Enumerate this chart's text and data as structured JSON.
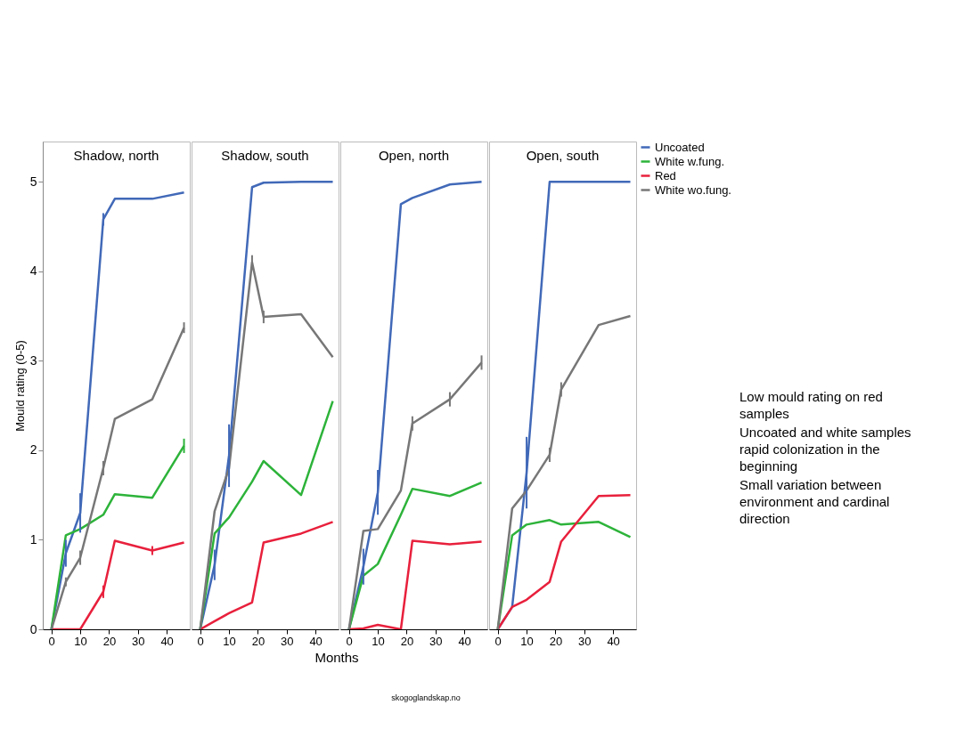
{
  "chart_data": [
    {
      "type": "line",
      "title": "Shadow, north",
      "ylabel": "Mould rating (0-5)",
      "x": [
        0,
        5,
        10,
        18,
        22,
        35,
        46
      ],
      "xlim": [
        -3,
        48
      ],
      "xticks": [
        0,
        10,
        20,
        30,
        40
      ],
      "ylim": [
        0,
        5.45
      ],
      "yticks": [
        0,
        1,
        2,
        3,
        4,
        5
      ],
      "grid": false,
      "legend": false,
      "marker": "none",
      "line_style": "solid",
      "series": [
        {
          "color": "#4169b8",
          "values": [
            0,
            0.85,
            1.3,
            4.58,
            4.81,
            4.81,
            4.88
          ],
          "errors": [
            null,
            0.15,
            0.22,
            0.07,
            null,
            null,
            null
          ]
        },
        {
          "color": "#2db33a",
          "values": [
            0,
            1.05,
            1.12,
            1.28,
            1.51,
            1.47,
            2.05
          ],
          "errors": [
            null,
            null,
            null,
            null,
            null,
            null,
            0.08
          ]
        },
        {
          "color": "#e8203c",
          "values": [
            0,
            0,
            0,
            0.42,
            0.99,
            0.88,
            0.97
          ],
          "errors": [
            null,
            null,
            null,
            0.07,
            null,
            0.05,
            null
          ]
        },
        {
          "color": "#777777",
          "values": [
            0,
            0.53,
            0.8,
            1.8,
            2.35,
            2.57,
            3.37
          ],
          "errors": [
            null,
            0.05,
            0.08,
            0.08,
            null,
            null,
            0.06
          ]
        }
      ]
    },
    {
      "type": "line",
      "title": "Shadow, south",
      "xlabel": "Months",
      "x": [
        0,
        5,
        10,
        18,
        22,
        35,
        46
      ],
      "xlim": [
        -3,
        48
      ],
      "xticks": [
        0,
        10,
        20,
        30,
        40
      ],
      "ylim": [
        0,
        5.45
      ],
      "yticks": [
        0,
        1,
        2,
        3,
        4,
        5
      ],
      "tick_labels": "x",
      "grid": false,
      "legend": false,
      "marker": "none",
      "line_style": "solid",
      "series": [
        {
          "color": "#4169b8",
          "values": [
            0,
            0.72,
            1.94,
            4.94,
            4.99,
            5,
            5
          ],
          "errors": [
            null,
            0.17,
            0.35,
            null,
            null,
            null,
            null
          ]
        },
        {
          "color": "#2db33a",
          "values": [
            0,
            1.07,
            1.25,
            1.65,
            1.88,
            1.5,
            2.55
          ],
          "errors": [
            null,
            null,
            null,
            null,
            null,
            null,
            null
          ]
        },
        {
          "color": "#e8203c",
          "values": [
            0,
            0.09,
            0.18,
            0.3,
            0.97,
            1.07,
            1.2
          ],
          "errors": [
            null,
            null,
            null,
            null,
            null,
            null,
            null
          ]
        },
        {
          "color": "#777777",
          "values": [
            0,
            1.32,
            1.8,
            4.1,
            3.49,
            3.52,
            3.04
          ],
          "errors": [
            null,
            null,
            null,
            0.08,
            0.07,
            null,
            null
          ]
        }
      ]
    },
    {
      "type": "line",
      "title": "Open, north",
      "x": [
        0,
        5,
        10,
        18,
        22,
        35,
        46
      ],
      "xlim": [
        -3,
        48
      ],
      "xticks": [
        0,
        10,
        20,
        30,
        40
      ],
      "ylim": [
        0,
        5.45
      ],
      "yticks": [
        0,
        1,
        2,
        3,
        4,
        5
      ],
      "tick_labels": "x",
      "grid": false,
      "legend": false,
      "marker": "none",
      "line_style": "solid",
      "series": [
        {
          "color": "#4169b8",
          "values": [
            0,
            0.7,
            1.53,
            4.75,
            4.82,
            4.97,
            5
          ],
          "errors": [
            null,
            0.2,
            0.25,
            null,
            null,
            null,
            null
          ]
        },
        {
          "color": "#2db33a",
          "values": [
            0,
            0.6,
            0.73,
            1.28,
            1.57,
            1.49,
            1.64
          ],
          "errors": [
            null,
            null,
            null,
            null,
            null,
            null,
            null
          ]
        },
        {
          "color": "#e8203c",
          "values": [
            0,
            0.01,
            0.05,
            0,
            0.99,
            0.95,
            0.98
          ],
          "errors": [
            null,
            null,
            null,
            null,
            null,
            null,
            null
          ]
        },
        {
          "color": "#777777",
          "values": [
            0,
            1.1,
            1.12,
            1.55,
            2.3,
            2.57,
            2.98
          ],
          "errors": [
            null,
            null,
            null,
            null,
            0.08,
            0.08,
            0.08
          ]
        }
      ]
    },
    {
      "type": "line",
      "title": "Open, south",
      "x": [
        0,
        5,
        10,
        18,
        22,
        35,
        46
      ],
      "xlim": [
        -3,
        48
      ],
      "xticks": [
        0,
        10,
        20,
        30,
        40
      ],
      "ylim": [
        0,
        5.45
      ],
      "yticks": [
        0,
        1,
        2,
        3,
        4,
        5
      ],
      "tick_labels": "x",
      "grid": false,
      "legend": "top right",
      "marker": "none",
      "line_style": "solid",
      "series": [
        {
          "name": "Uncoated",
          "color": "#4169b8",
          "values": [
            0,
            0.25,
            1.75,
            5,
            5,
            5,
            5
          ],
          "errors": [
            null,
            null,
            0.4,
            null,
            null,
            null,
            null
          ]
        },
        {
          "name": "White w.fung.",
          "color": "#2db33a",
          "values": [
            0,
            1.05,
            1.17,
            1.22,
            1.17,
            1.2,
            1.03
          ],
          "errors": [
            null,
            null,
            null,
            null,
            null,
            null,
            null
          ]
        },
        {
          "name": "Red",
          "color": "#e8203c",
          "values": [
            0,
            0.25,
            0.33,
            0.53,
            0.98,
            1.49,
            1.5
          ],
          "errors": [
            null,
            null,
            null,
            null,
            null,
            null,
            null
          ]
        },
        {
          "name": "White wo.fung.",
          "color": "#777777",
          "values": [
            0,
            1.35,
            1.55,
            1.95,
            2.68,
            3.4,
            3.5
          ],
          "errors": [
            null,
            null,
            null,
            0.08,
            0.08,
            null,
            null
          ]
        }
      ]
    },
    {
      "type": "other",
      "annotations": [
        "Low mould rating on red samples",
        "Uncoated and white samples rapid colonization in the beginning",
        "Small variation between environment and cardinal direction",
        "skogoglandskap.no"
      ]
    }
  ]
}
